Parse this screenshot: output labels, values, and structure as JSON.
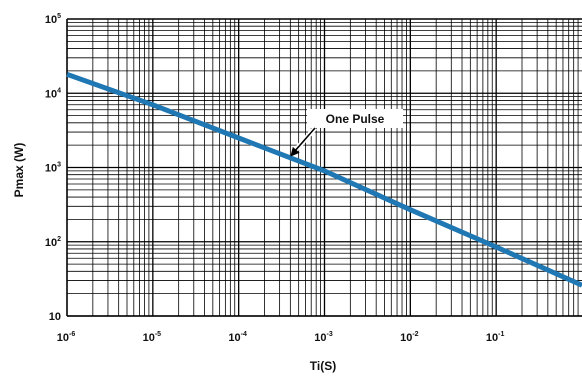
{
  "chart_data": {
    "type": "line",
    "xlabel": "Ti(S)",
    "ylabel": "Pmax (W)",
    "xscale": "log",
    "yscale": "log",
    "xlim": [
      1e-06,
      1
    ],
    "ylim": [
      10,
      100000
    ],
    "grid": true,
    "x_ticks": [
      {
        "value": 1e-06,
        "base": "10",
        "exp": "-6"
      },
      {
        "value": 1e-05,
        "base": "10",
        "exp": "-5"
      },
      {
        "value": 0.0001,
        "base": "10",
        "exp": "-4"
      },
      {
        "value": 0.001,
        "base": "10",
        "exp": "-3"
      },
      {
        "value": 0.01,
        "base": "10",
        "exp": "-2"
      },
      {
        "value": 0.1,
        "base": "10",
        "exp": "-1"
      }
    ],
    "y_ticks": [
      {
        "value": 100000,
        "base": "10",
        "exp": "5"
      },
      {
        "value": 10000,
        "base": "10",
        "exp": "4"
      },
      {
        "value": 1000,
        "base": "10",
        "exp": "3"
      },
      {
        "value": 100,
        "base": "10",
        "exp": "2"
      },
      {
        "value": 10,
        "base": "10",
        "exp": ""
      }
    ],
    "series": [
      {
        "x": [
          1e-06,
          1e-05,
          0.0001,
          0.001,
          0.01,
          0.1,
          1
        ],
        "y": [
          18000,
          7000,
          2500,
          900,
          270,
          85,
          26
        ],
        "color": "#1f78b4"
      }
    ],
    "annotation": {
      "text": "One Pulse",
      "target_x": 0.0004,
      "target_y": 1400
    }
  },
  "colors": {
    "line": "#1f78b4",
    "grid": "#000000"
  }
}
